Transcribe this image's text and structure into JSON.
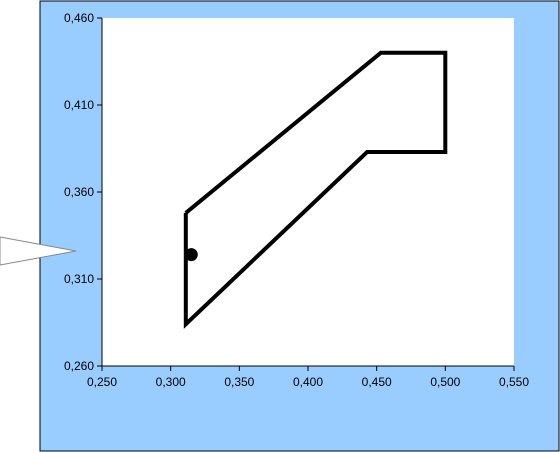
{
  "chart_data": {
    "type": "scatter",
    "title": "",
    "xlabel": "",
    "ylabel": "",
    "xlim": [
      0.25,
      0.55
    ],
    "ylim": [
      0.26,
      0.46
    ],
    "x_ticks": [
      "0,250",
      "0,300",
      "0,350",
      "0,400",
      "0,450",
      "0,500",
      "0,550"
    ],
    "y_ticks": [
      "0,460",
      "0,410",
      "0,360",
      "0,310",
      "0,260"
    ],
    "grid": false,
    "legend": "none",
    "series": [
      {
        "kind": "polygon",
        "points": [
          [
            0.311,
            0.348
          ],
          [
            0.311,
            0.284
          ],
          [
            0.443,
            0.383
          ],
          [
            0.5,
            0.383
          ],
          [
            0.5,
            0.44
          ],
          [
            0.453,
            0.44
          ],
          [
            0.311,
            0.348
          ]
        ]
      },
      {
        "kind": "point",
        "points": [
          [
            0.315,
            0.324
          ]
        ]
      }
    ]
  },
  "colors": {
    "background_blue": "#99ccff",
    "plot_area": "#ffffff",
    "line": "#000000"
  }
}
